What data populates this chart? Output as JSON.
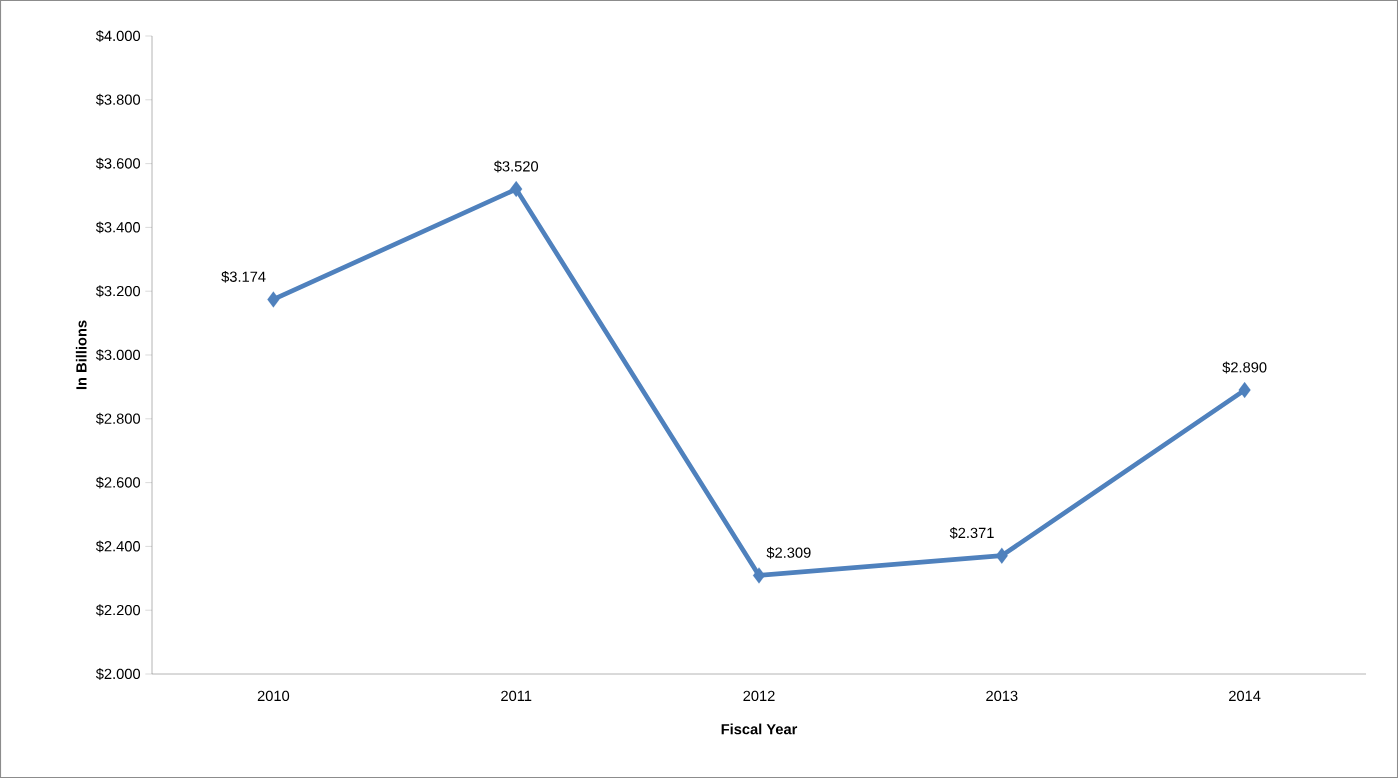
{
  "chart_data": {
    "type": "line",
    "xlabel": "Fiscal Year",
    "ylabel": "In Billions",
    "categories": [
      "2010",
      "2011",
      "2012",
      "2013",
      "2014"
    ],
    "series": [
      {
        "color": "#4f81bd",
        "values": [
          3.174,
          3.52,
          2.309,
          2.371,
          2.89
        ],
        "value_labels": [
          "$3.174",
          "$3.520",
          "$2.309",
          "$2.371",
          "$2.890"
        ]
      }
    ],
    "ylim": [
      2,
      4
    ],
    "yticks": [
      {
        "value": 2,
        "label": "$2.000"
      },
      {
        "value": 2.2,
        "label": "$2.200"
      },
      {
        "value": 2.4,
        "label": "$2.400"
      },
      {
        "value": 2.6,
        "label": "$2.600"
      },
      {
        "value": 2.8,
        "label": "$2.800"
      },
      {
        "value": 3,
        "label": "$3.000"
      },
      {
        "value": 3.2,
        "label": "$3.200"
      },
      {
        "value": 3.4,
        "label": "$3.400"
      },
      {
        "value": 3.6,
        "label": "$3.600"
      },
      {
        "value": 3.8,
        "label": "$3.800"
      },
      {
        "value": 4,
        "label": "$4.000"
      }
    ],
    "grid": false,
    "legend": false,
    "marker": "diamond",
    "line_style": "solid"
  }
}
